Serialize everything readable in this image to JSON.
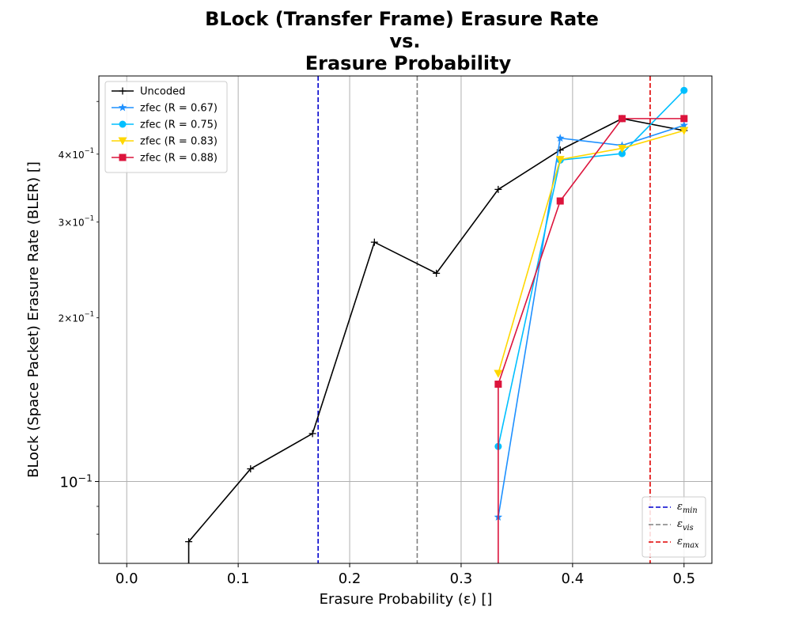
{
  "chart_data": {
    "type": "line",
    "title_lines": [
      "BLock (Transfer Frame) Erasure Rate",
      "vs.",
      "Erasure Probability"
    ],
    "xlabel": "Erasure Probability (ε) []",
    "ylabel": "BLock (Space Packet) Erasure Rate (BLER) []",
    "xlim": [
      -0.025,
      0.525
    ],
    "ylim": [
      0.0707,
      0.557
    ],
    "yscale": "log",
    "grid": true,
    "x_ticks": [
      {
        "value": 0.0,
        "label": "0.0"
      },
      {
        "value": 0.1,
        "label": "0.1"
      },
      {
        "value": 0.2,
        "label": "0.2"
      },
      {
        "value": 0.3,
        "label": "0.3"
      },
      {
        "value": 0.4,
        "label": "0.4"
      },
      {
        "value": 0.5,
        "label": "0.5"
      }
    ],
    "y_major_ticks": [
      {
        "value": 0.1,
        "label": "10⁻¹"
      }
    ],
    "y_minor_ticks": [
      {
        "value": 0.2,
        "label": "2×10⁻¹"
      },
      {
        "value": 0.3,
        "label": "3×10⁻¹"
      },
      {
        "value": 0.4,
        "label": "4×10⁻¹"
      },
      {
        "value": 0.5,
        "label": ""
      },
      {
        "value": 0.09,
        "label": ""
      },
      {
        "value": 0.08,
        "label": ""
      }
    ],
    "legend_position": "upper-left",
    "series": [
      {
        "name": "Uncoded",
        "color": "#000000",
        "marker": "plus",
        "x": [
          0.0556,
          0.0556,
          0.1111,
          0.1667,
          0.2222,
          0.2778,
          0.3333,
          0.3889,
          0.4444,
          0.5
        ],
        "y": [
          0.06,
          0.0775,
          0.1055,
          0.1225,
          0.2755,
          0.2415,
          0.3445,
          0.407,
          0.465,
          0.442
        ]
      },
      {
        "name": "zfec (R = 0.67)",
        "color": "#1e90ff",
        "marker": "star",
        "x": [
          0.3333,
          0.3889,
          0.4444,
          0.5
        ],
        "y": [
          0.086,
          0.428,
          0.415,
          0.452
        ]
      },
      {
        "name": "zfec (R = 0.75)",
        "color": "#00bfff",
        "marker": "circle",
        "x": [
          0.3333,
          0.3889,
          0.4444,
          0.5
        ],
        "y": [
          0.116,
          0.39,
          0.401,
          0.524
        ]
      },
      {
        "name": "zfec (R = 0.83)",
        "color": "#ffd700",
        "marker": "triangle-down",
        "x": [
          0.3333,
          0.3889,
          0.4444,
          0.5
        ],
        "y": [
          0.158,
          0.391,
          0.41,
          0.442
        ]
      },
      {
        "name": "zfec (R = 0.88)",
        "color": "#dc143c",
        "marker": "square",
        "x": [
          0.3333,
          0.3333,
          0.3889,
          0.4444,
          0.5
        ],
        "y": [
          0.06,
          0.151,
          0.328,
          0.465,
          0.465
        ]
      }
    ],
    "vlines": [
      {
        "name": "εmin",
        "base": "ε",
        "sub": "min",
        "x": 0.1717,
        "color": "#0000cd"
      },
      {
        "name": "εvis",
        "base": "ε",
        "sub": "vis",
        "x": 0.2606,
        "color": "#808080"
      },
      {
        "name": "εmax",
        "base": "ε",
        "sub": "max",
        "x": 0.4696,
        "color": "#e00000"
      }
    ]
  }
}
